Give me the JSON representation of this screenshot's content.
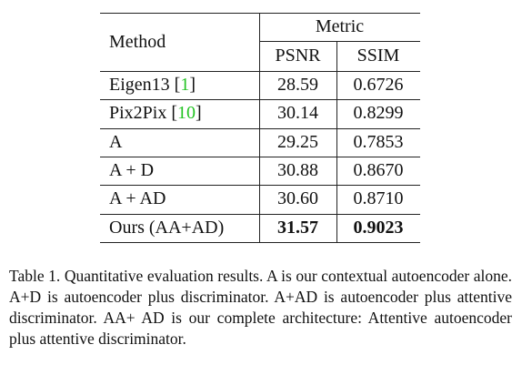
{
  "table": {
    "header": {
      "method": "Method",
      "metric": "Metric",
      "columns": [
        "PSNR",
        "SSIM"
      ]
    },
    "rows": [
      {
        "method": "Eigen13",
        "cite": {
          "open": "[",
          "num": "1",
          "close": "]"
        },
        "values": [
          "28.59",
          "0.6726"
        ]
      },
      {
        "method": "Pix2Pix",
        "cite": {
          "open": "[",
          "num": "10",
          "close": "]"
        },
        "values": [
          "30.14",
          "0.8299"
        ]
      },
      {
        "method": "A",
        "values": [
          "29.25",
          "0.7853"
        ]
      },
      {
        "method": "A + D",
        "values": [
          "30.88",
          "0.8670"
        ]
      },
      {
        "method": "A + AD",
        "values": [
          "30.60",
          "0.8710"
        ]
      },
      {
        "method": "Ours (AA+AD)",
        "values": [
          "31.57",
          "0.9023"
        ]
      }
    ]
  },
  "caption": "Table 1. Quantitative evaluation results. A is our contextual autoencoder alone. A+D is autoencoder plus discriminator. A+AD is autoencoder plus attentive discriminator. AA+ AD is our complete architecture: Attentive autoencoder plus attentive discriminator."
}
